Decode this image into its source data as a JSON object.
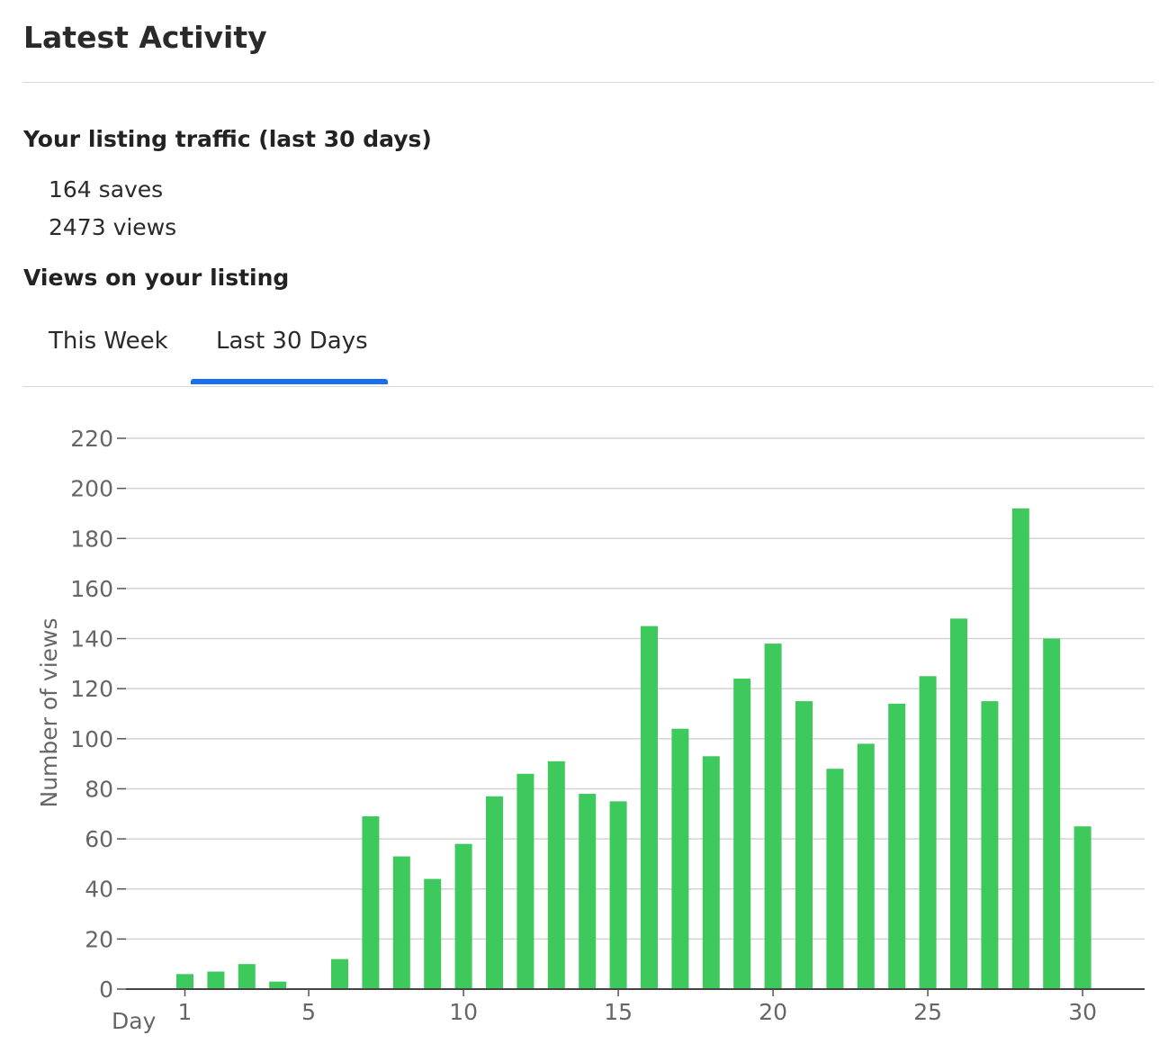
{
  "header": {
    "title": "Latest Activity"
  },
  "traffic": {
    "title": "Your listing traffic (last 30 days)",
    "saves": "164 saves",
    "views": "2473 views"
  },
  "views_section": {
    "title": "Views on your listing",
    "tabs": [
      {
        "label": "This Week",
        "active": false
      },
      {
        "label": "Last 30 Days",
        "active": true
      }
    ]
  },
  "colors": {
    "bar": "#3ec95c",
    "tab_indicator": "#1a6ff0",
    "grid": "#d3d3d3"
  },
  "chart_data": {
    "type": "bar",
    "xlabel": "Day",
    "ylabel": "Number of views",
    "ylim": [
      0,
      220
    ],
    "yticks": [
      0,
      20,
      40,
      60,
      80,
      100,
      120,
      140,
      160,
      180,
      200,
      220
    ],
    "xticks": [
      1,
      5,
      10,
      15,
      20,
      25,
      30
    ],
    "grid": true,
    "x": [
      1,
      2,
      3,
      4,
      5,
      6,
      7,
      8,
      9,
      10,
      11,
      12,
      13,
      14,
      15,
      16,
      17,
      18,
      19,
      20,
      21,
      22,
      23,
      24,
      25,
      26,
      27,
      28,
      29,
      30
    ],
    "values": [
      6,
      7,
      10,
      3,
      0,
      12,
      69,
      53,
      44,
      58,
      77,
      86,
      91,
      78,
      75,
      145,
      104,
      93,
      124,
      138,
      115,
      88,
      98,
      114,
      125,
      148,
      115,
      192,
      140,
      65
    ]
  }
}
